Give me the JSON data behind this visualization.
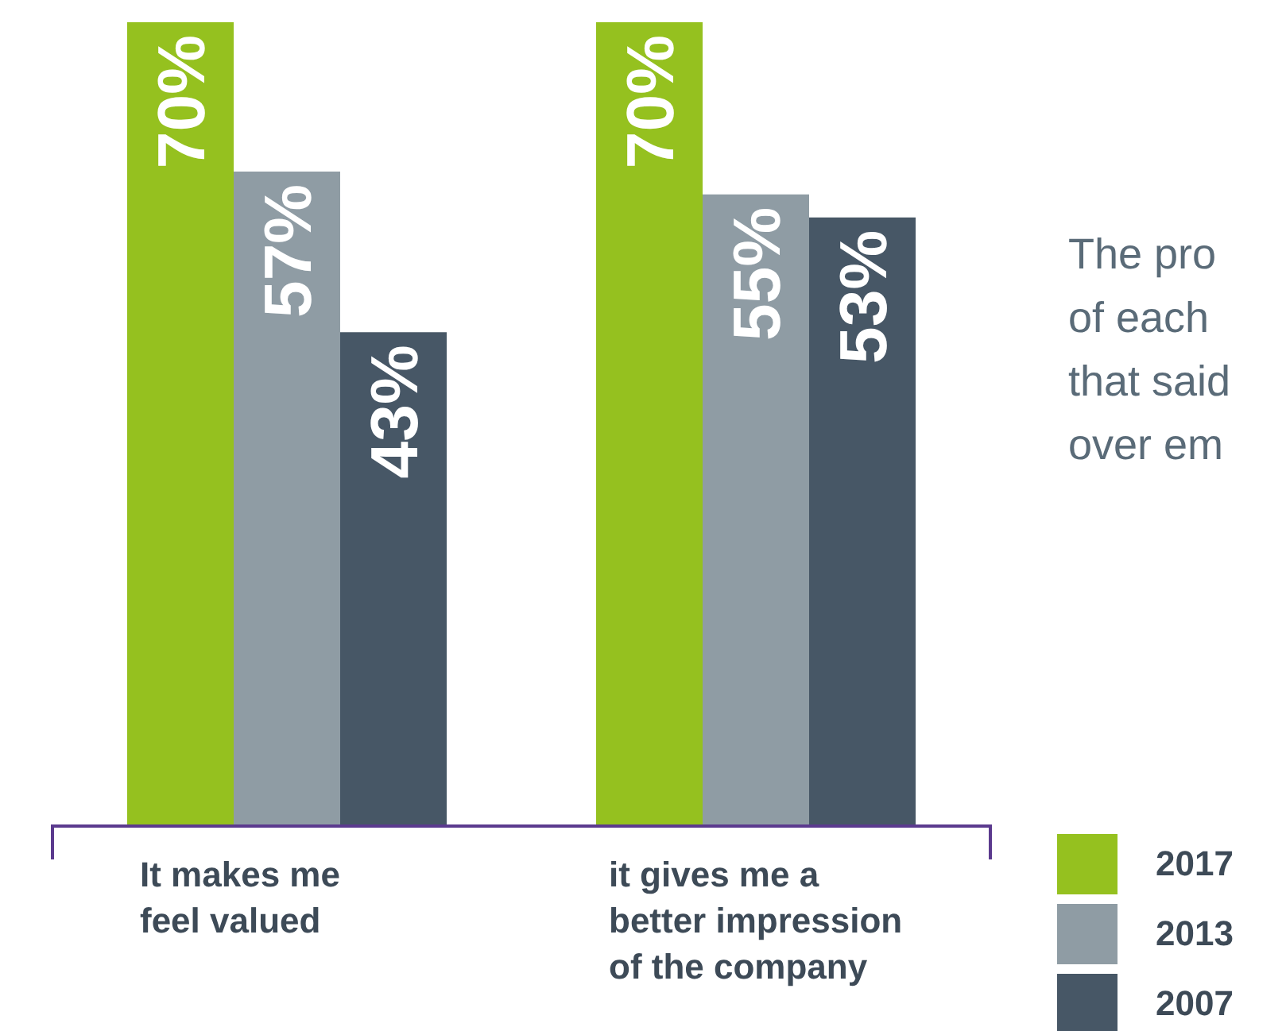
{
  "chart_data": {
    "type": "bar",
    "categories": [
      "It makes me\nfeel valued",
      "it gives me a\nbetter impression\nof the company"
    ],
    "series": [
      {
        "name": "2017",
        "color": "#95c11f",
        "values": [
          70,
          70
        ],
        "value_labels": [
          "70%",
          "70%"
        ]
      },
      {
        "name": "2013",
        "color": "#8f9ca4",
        "values": [
          57,
          55
        ],
        "value_labels": [
          "57%",
          "55%"
        ]
      },
      {
        "name": "2007",
        "color": "#475766",
        "values": [
          43,
          53
        ],
        "value_labels": [
          "43%",
          "53%"
        ]
      }
    ],
    "legend": "bottom right",
    "annotations": [
      "The pro",
      "of each",
      "that said",
      "over em"
    ]
  }
}
